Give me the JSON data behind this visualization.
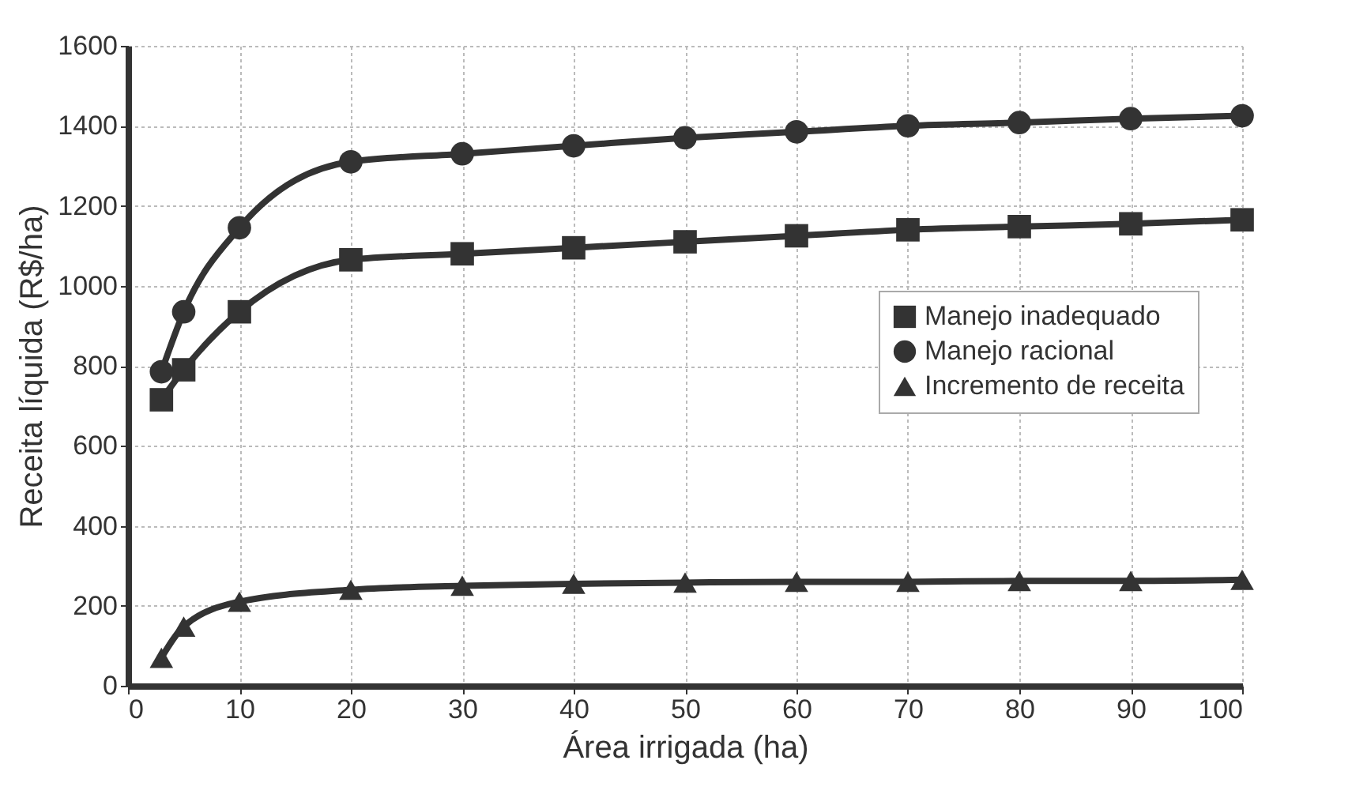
{
  "chart_data": {
    "type": "line",
    "xlabel": "Área irrigada (ha)",
    "ylabel": "Receita líquida (R$/ha)",
    "x": [
      3,
      5,
      10,
      20,
      30,
      40,
      50,
      60,
      70,
      80,
      90,
      100
    ],
    "series": [
      {
        "name": "Manejo inadequado",
        "color": "#333333",
        "marker": "square",
        "values": [
          715,
          790,
          935,
          1065,
          1080,
          1095,
          1110,
          1125,
          1140,
          1148,
          1155,
          1165
        ]
      },
      {
        "name": "Manejo racional",
        "color": "#333333",
        "marker": "circle",
        "values": [
          785,
          935,
          1145,
          1310,
          1330,
          1350,
          1370,
          1385,
          1400,
          1408,
          1418,
          1425
        ]
      },
      {
        "name": "Incremento de receita",
        "color": "#333333",
        "marker": "triangle",
        "values": [
          70,
          148,
          210,
          240,
          250,
          255,
          258,
          260,
          260,
          262,
          262,
          265
        ]
      }
    ],
    "xlim": [
      0,
      100
    ],
    "xticks": [
      0,
      10,
      20,
      30,
      40,
      50,
      60,
      70,
      80,
      90,
      100
    ],
    "ylim": [
      0,
      1600
    ],
    "yticks": [
      0,
      200,
      400,
      600,
      800,
      1000,
      1200,
      1400,
      1600
    ],
    "grid": true,
    "legend": "right",
    "line_style": "solid"
  }
}
